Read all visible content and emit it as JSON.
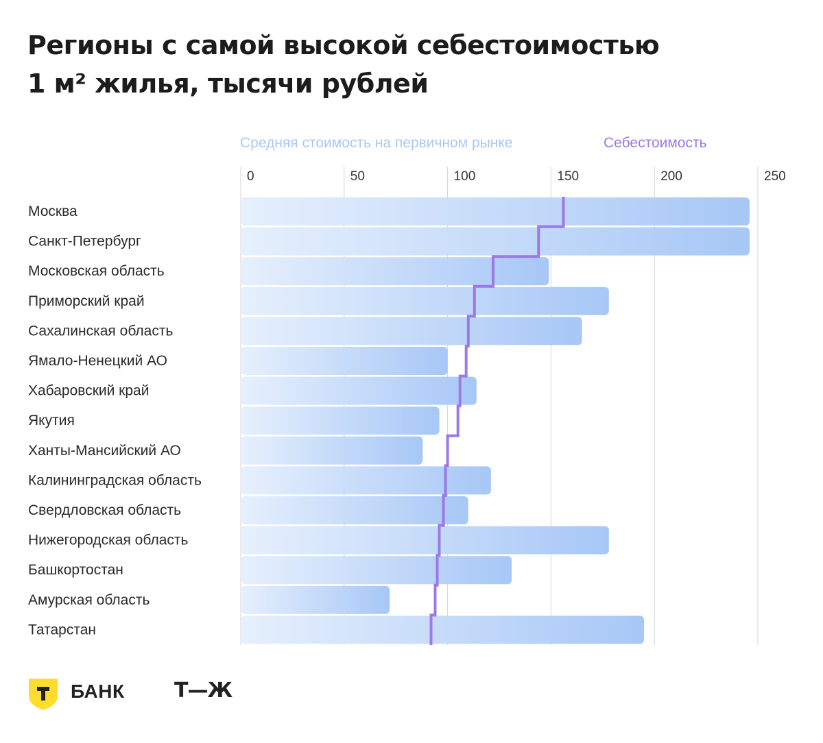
{
  "title_lines": [
    "Регионы с самой высокой себестоимостью",
    "1 м² жилья, тысячи рублей"
  ],
  "colors": {
    "bar_light": "#e6f0fd",
    "bar_dark": "#a7c7f6",
    "cost_line": "#9b79e6",
    "grid": "#d4d4d4",
    "logo_yellow": "#ffdd2d"
  },
  "brand": {
    "bank_label": "БАНК",
    "tj_label": "Т—Ж"
  },
  "chart_data": {
    "type": "bar",
    "orientation": "horizontal",
    "title": "Регионы с самой высокой себестоимостью 1 м² жилья, тысячи рублей",
    "xlim": [
      0,
      250
    ],
    "xticks": [
      0,
      50,
      100,
      150,
      200,
      250
    ],
    "legend_position": "top",
    "grid": true,
    "categories": [
      "Москва",
      "Санкт-Петербург",
      "Московская область",
      "Приморский край",
      "Сахалинская область",
      "Ямало-Ненецкий АО",
      "Хабаровский край",
      "Якутия",
      "Ханты-Мансийский АО",
      "Калининградская область",
      "Свердловская область",
      "Нижегородская область",
      "Башкортостан",
      "Амурская область",
      "Татарстан"
    ],
    "series": [
      {
        "name": "Средняя стоимость на первичном рынке",
        "kind": "bar",
        "values": [
          246,
          246,
          149,
          178,
          165,
          100,
          114,
          96,
          88,
          121,
          110,
          178,
          131,
          72,
          195
        ]
      },
      {
        "name": "Себестоимость",
        "kind": "step-line",
        "values": [
          156,
          144,
          122,
          113,
          110,
          109,
          106,
          105,
          100,
          99,
          98,
          96,
          95,
          94,
          92
        ]
      }
    ]
  }
}
